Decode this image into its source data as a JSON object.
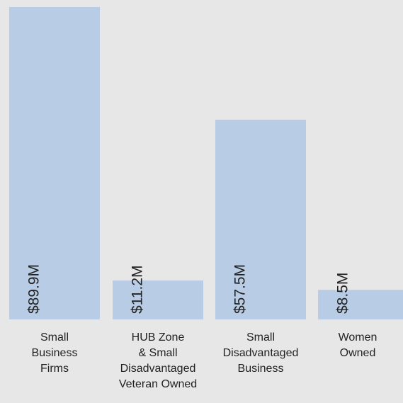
{
  "chart_data": {
    "type": "bar",
    "title": "",
    "xlabel": "",
    "ylabel": "",
    "ylim": [
      0,
      89.9
    ],
    "grid": false,
    "legend": "none",
    "categories": [
      "Small Business Firms",
      "HUB Zone & Small Disadvantaged Veteran Owned",
      "Small Disadvantaged Business",
      "Women Owned"
    ],
    "category_lines": [
      [
        "Small",
        "Business",
        "Firms"
      ],
      [
        "HUB Zone",
        "& Small",
        "Disadvantaged",
        "Veteran Owned"
      ],
      [
        "Small",
        "Disadvantaged",
        "Business"
      ],
      [
        "Women",
        "Owned"
      ]
    ],
    "values": [
      89.9,
      11.2,
      57.5,
      8.5
    ],
    "value_labels": [
      "$89.9M",
      "$11.2M",
      "$57.5M",
      "$8.5M"
    ],
    "unit": "$M",
    "colors": {
      "bar": "#b8cde5",
      "background": "#e7e7e7",
      "text": "#222222"
    }
  }
}
